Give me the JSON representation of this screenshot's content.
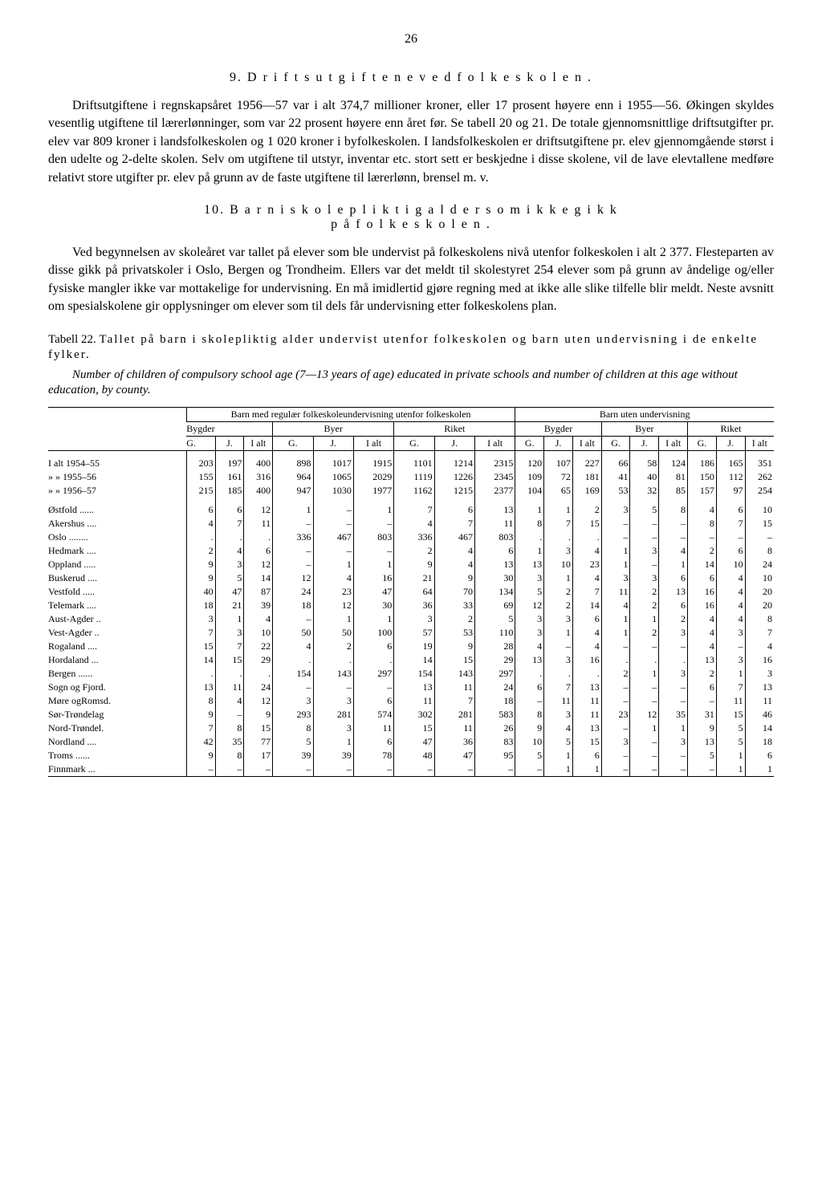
{
  "pageNumber": "26",
  "section9": {
    "heading": "9.  D r i f t s u t g i f t e n e  v e d  f o l k e s k o l e n .",
    "para": "Driftsutgiftene i regnskapsåret 1956—57 var i alt 374,7 millioner kroner, eller 17 prosent høyere enn i 1955—56. Økingen skyldes vesentlig utgiftene til lærerlønninger, som var 22 prosent høyere enn året før. Se tabell 20 og 21. De totale gjennomsnittlige driftsutgifter pr. elev var 809 kroner i landsfolkeskolen og 1 020 kroner i byfolkeskolen. I landsfolkeskolen er driftsutgiftene pr. elev gjennomgående størst i den udelte og 2-delte skolen. Selv om utgiftene til utstyr, inventar etc. stort sett er beskjedne i disse skolene, vil de lave elevtallene medføre relativt store utgifter pr. elev på grunn av de faste utgiftene til lærerlønn, brensel m. v."
  },
  "section10": {
    "heading1": "10.  B a r n  i  s k o l e p l i k t i g  a l d e r  s o m  i k k e  g i k k",
    "heading2": "p å  f o l k e s k o l e n .",
    "para": "Ved begynnelsen av skoleåret var tallet på elever som ble undervist på folkeskolens nivå utenfor folkeskolen i alt 2 377. Flesteparten av disse gikk på privatskoler i Oslo, Bergen og Trondheim. Ellers var det meldt til skolestyret 254 elever som på grunn av åndelige og/eller fysiske mangler ikke var mottakelige for undervisning. En må imidlertid gjøre regning med at ikke alle slike tilfelle blir meldt. Neste avsnitt om spesialskolene gir opplysninger om elever som til dels får undervisning etter folkeskolens plan."
  },
  "table22": {
    "captionPrefix": "Tabell 22. ",
    "captionSpaced": "Tallet på barn i skolepliktig alder undervist utenfor folkeskolen og barn uten undervisning i de enkelte fylker.",
    "subcaption": "Number of children of compulsory school age (7—13 years of age) educated in private schools and number of children at this age without education, by county.",
    "superHeaders": {
      "left": "Barn med regulær folkeskoleundervisning utenfor folkeskolen",
      "right": "Barn uten undervisning"
    },
    "groupHeaders": [
      "Bygder",
      "Byer",
      "Riket",
      "Bygder",
      "Byer",
      "Riket"
    ],
    "colHeaders": [
      "G.",
      "J.",
      "I alt",
      "G.",
      "J.",
      "I alt",
      "G.",
      "J.",
      "I alt",
      "G.",
      "J.",
      "I alt",
      "G.",
      "J.",
      "I alt",
      "G.",
      "J.",
      "I alt"
    ],
    "totalRows": [
      {
        "label": "I alt 1954–55",
        "v": [
          "203",
          "197",
          "400",
          "898",
          "1017",
          "1915",
          "1101",
          "1214",
          "2315",
          "120",
          "107",
          "227",
          "66",
          "58",
          "124",
          "186",
          "165",
          "351"
        ]
      },
      {
        "label": "»   »   1955–56",
        "v": [
          "155",
          "161",
          "316",
          "964",
          "1065",
          "2029",
          "1119",
          "1226",
          "2345",
          "109",
          "72",
          "181",
          "41",
          "40",
          "81",
          "150",
          "112",
          "262"
        ]
      },
      {
        "label": "»   »   1956–57",
        "v": [
          "215",
          "185",
          "400",
          "947",
          "1030",
          "1977",
          "1162",
          "1215",
          "2377",
          "104",
          "65",
          "169",
          "53",
          "32",
          "85",
          "157",
          "97",
          "254"
        ]
      }
    ],
    "rows": [
      {
        "label": "Østfold ......",
        "v": [
          "6",
          "6",
          "12",
          "1",
          "–",
          "1",
          "7",
          "6",
          "13",
          "1",
          "1",
          "2",
          "3",
          "5",
          "8",
          "4",
          "6",
          "10"
        ]
      },
      {
        "label": "Akershus ....",
        "v": [
          "4",
          "7",
          "11",
          "–",
          "–",
          "–",
          "4",
          "7",
          "11",
          "8",
          "7",
          "15",
          "–",
          "–",
          "–",
          "8",
          "7",
          "15"
        ]
      },
      {
        "label": "Oslo ........",
        "v": [
          ".",
          ".",
          ".",
          "336",
          "467",
          "803",
          "336",
          "467",
          "803",
          ".",
          ".",
          ".",
          "–",
          "–",
          "–",
          "–",
          "–",
          "–"
        ]
      },
      {
        "label": "Hedmark ....",
        "v": [
          "2",
          "4",
          "6",
          "–",
          "–",
          "–",
          "2",
          "4",
          "6",
          "1",
          "3",
          "4",
          "1",
          "3",
          "4",
          "2",
          "6",
          "8"
        ]
      },
      {
        "label": "Oppland .....",
        "v": [
          "9",
          "3",
          "12",
          "–",
          "1",
          "1",
          "9",
          "4",
          "13",
          "13",
          "10",
          "23",
          "1",
          "–",
          "1",
          "14",
          "10",
          "24"
        ]
      },
      {
        "label": "Buskerud ....",
        "v": [
          "9",
          "5",
          "14",
          "12",
          "4",
          "16",
          "21",
          "9",
          "30",
          "3",
          "1",
          "4",
          "3",
          "3",
          "6",
          "6",
          "4",
          "10"
        ]
      },
      {
        "label": "Vestfold .....",
        "v": [
          "40",
          "47",
          "87",
          "24",
          "23",
          "47",
          "64",
          "70",
          "134",
          "5",
          "2",
          "7",
          "11",
          "2",
          "13",
          "16",
          "4",
          "20"
        ]
      },
      {
        "label": "Telemark ....",
        "v": [
          "18",
          "21",
          "39",
          "18",
          "12",
          "30",
          "36",
          "33",
          "69",
          "12",
          "2",
          "14",
          "4",
          "2",
          "6",
          "16",
          "4",
          "20"
        ]
      },
      {
        "label": "Aust-Agder ..",
        "v": [
          "3",
          "1",
          "4",
          "–",
          "1",
          "1",
          "3",
          "2",
          "5",
          "3",
          "3",
          "6",
          "1",
          "1",
          "2",
          "4",
          "4",
          "8"
        ]
      },
      {
        "label": "Vest-Agder ..",
        "v": [
          "7",
          "3",
          "10",
          "50",
          "50",
          "100",
          "57",
          "53",
          "110",
          "3",
          "1",
          "4",
          "1",
          "2",
          "3",
          "4",
          "3",
          "7"
        ]
      },
      {
        "label": "Rogaland ....",
        "v": [
          "15",
          "7",
          "22",
          "4",
          "2",
          "6",
          "19",
          "9",
          "28",
          "4",
          "–",
          "4",
          "–",
          "–",
          "–",
          "4",
          "–",
          "4"
        ]
      },
      {
        "label": "Hordaland ...",
        "v": [
          "14",
          "15",
          "29",
          ".",
          ".",
          ".",
          "14",
          "15",
          "29",
          "13",
          "3",
          "16",
          ".",
          ".",
          ".",
          "13",
          "3",
          "16"
        ]
      },
      {
        "label": "Bergen ......",
        "v": [
          ".",
          ".",
          ".",
          "154",
          "143",
          "297",
          "154",
          "143",
          "297",
          ".",
          ".",
          ".",
          "2",
          "1",
          "3",
          "2",
          "1",
          "3"
        ]
      },
      {
        "label": "Sogn og Fjord.",
        "v": [
          "13",
          "11",
          "24",
          "–",
          "–",
          "–",
          "13",
          "11",
          "24",
          "6",
          "7",
          "13",
          "–",
          "–",
          "–",
          "6",
          "7",
          "13"
        ]
      },
      {
        "label": "Møre ogRomsd.",
        "v": [
          "8",
          "4",
          "12",
          "3",
          "3",
          "6",
          "11",
          "7",
          "18",
          "–",
          "11",
          "11",
          "–",
          "–",
          "–",
          "–",
          "11",
          "11"
        ]
      },
      {
        "label": "Sør-Trøndelag",
        "v": [
          "9",
          "–",
          "9",
          "293",
          "281",
          "574",
          "302",
          "281",
          "583",
          "8",
          "3",
          "11",
          "23",
          "12",
          "35",
          "31",
          "15",
          "46"
        ]
      },
      {
        "label": "Nord-Trøndel.",
        "v": [
          "7",
          "8",
          "15",
          "8",
          "3",
          "11",
          "15",
          "11",
          "26",
          "9",
          "4",
          "13",
          "–",
          "1",
          "1",
          "9",
          "5",
          "14"
        ]
      },
      {
        "label": "Nordland ....",
        "v": [
          "42",
          "35",
          "77",
          "5",
          "1",
          "6",
          "47",
          "36",
          "83",
          "10",
          "5",
          "15",
          "3",
          "–",
          "3",
          "13",
          "5",
          "18"
        ]
      },
      {
        "label": "Troms  ......",
        "v": [
          "9",
          "8",
          "17",
          "39",
          "39",
          "78",
          "48",
          "47",
          "95",
          "5",
          "1",
          "6",
          "–",
          "–",
          "–",
          "5",
          "1",
          "6"
        ]
      },
      {
        "label": "Finnmark  ...",
        "v": [
          "–",
          "–",
          "–",
          "–",
          "–",
          "–",
          "–",
          "–",
          "–",
          "–",
          "1",
          "1",
          "–",
          "–",
          "–",
          "–",
          "1",
          "1"
        ]
      }
    ]
  }
}
